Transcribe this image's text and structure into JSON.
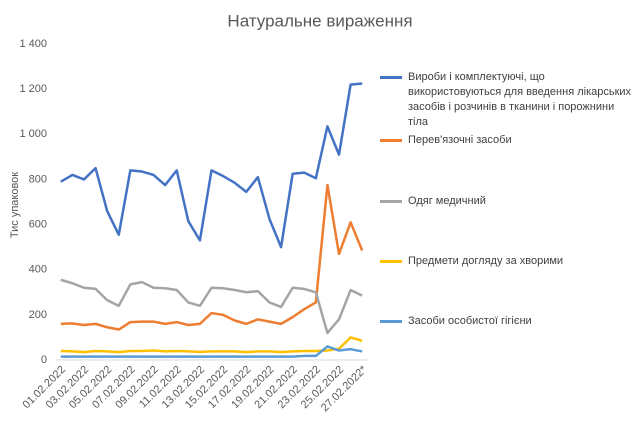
{
  "chart_data": {
    "type": "line",
    "title": "Натуральне вираження",
    "y_label": "Тис упаковок",
    "categories": [
      "01.02.2022",
      null,
      "03.02.2022",
      null,
      "05.02.2022",
      null,
      "07.02.2022",
      null,
      "09.02.2022",
      null,
      "11.02.2022",
      null,
      "13.02.2022",
      null,
      "15.02.2022",
      null,
      "17.02.2022",
      null,
      "19.02.2022",
      null,
      "21.02.2022",
      null,
      "23.02.2022",
      null,
      "25.02.2022",
      null,
      "27.02.2022*"
    ],
    "series": [
      {
        "name": "Вироби і комплектуючі, що використовуються для введення лікарських засобів і розчинів в тканини і порожнини тіла",
        "color": "#4472c4",
        "values": [
          790,
          820,
          800,
          850,
          660,
          555,
          840,
          835,
          820,
          775,
          840,
          615,
          530,
          840,
          815,
          785,
          745,
          810,
          625,
          500,
          825,
          830,
          805,
          1035,
          910,
          1220,
          1225
        ]
      },
      {
        "name": "Перев'язочні засоби",
        "color": "#ed7d31",
        "values": [
          160,
          162,
          155,
          160,
          145,
          135,
          168,
          170,
          170,
          160,
          168,
          155,
          160,
          208,
          200,
          175,
          160,
          180,
          170,
          160,
          190,
          225,
          255,
          775,
          470,
          610,
          485
        ]
      },
      {
        "name": "Одяг медичний",
        "color": "#a5a5a5",
        "values": [
          355,
          340,
          320,
          315,
          265,
          240,
          335,
          345,
          320,
          318,
          310,
          255,
          240,
          320,
          318,
          310,
          300,
          305,
          255,
          235,
          320,
          315,
          300,
          120,
          180,
          310,
          285
        ]
      },
      {
        "name": "Предмети догляду за хворими",
        "color": "#ffc000",
        "values": [
          40,
          38,
          35,
          40,
          38,
          35,
          40,
          40,
          42,
          38,
          40,
          38,
          36,
          38,
          38,
          38,
          35,
          38,
          38,
          35,
          38,
          40,
          40,
          42,
          50,
          100,
          85
        ]
      },
      {
        "name": "Засоби особистої гігієни",
        "color": "#5b9bd5",
        "values": [
          15,
          15,
          15,
          15,
          15,
          15,
          15,
          15,
          15,
          15,
          15,
          15,
          15,
          15,
          15,
          15,
          15,
          15,
          15,
          15,
          15,
          18,
          18,
          60,
          42,
          48,
          38
        ]
      }
    ],
    "ylim": [
      0,
      1400
    ],
    "yticks": [
      0,
      200,
      400,
      600,
      800,
      {
        "value": 1000,
        "label": "1 000"
      },
      {
        "value": 1200,
        "label": "1 200"
      },
      {
        "value": 1400,
        "label": "1 400"
      }
    ],
    "grid": false,
    "legend": "right"
  }
}
